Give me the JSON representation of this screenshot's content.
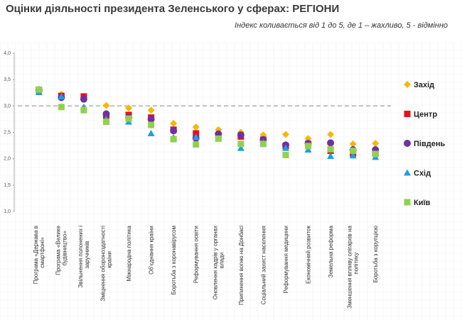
{
  "title": "Оцінки діяльності президента Зеленського у сферах: РЕГІОНИ",
  "subtitle": "Індекс коливається від 1 до 5, де 1 – жахливо, 5 - відмінно",
  "chart_data": {
    "type": "scatter",
    "title": "Оцінки діяльності президента Зеленського у сферах: РЕГІОНИ",
    "ylim": [
      1.0,
      4.0
    ],
    "yticks": [
      "1,0",
      "1,5",
      "2,0",
      "2,5",
      "3,0",
      "3,5",
      "4,0"
    ],
    "reference_line": 3.0,
    "grid": true,
    "legend": "right",
    "categories": [
      [
        "Програма «Держава в",
        "смартфоні»"
      ],
      [
        "Програма «Велике",
        "будівництво»"
      ],
      [
        "Звільнення полонених і",
        "заручників"
      ],
      [
        "Зміцнення обороноздатності",
        "країни"
      ],
      [
        "Міжнародна політика"
      ],
      [
        "Об'єднання країни"
      ],
      [
        "Боротьба з коронавірусом"
      ],
      [
        "Реформування освіти"
      ],
      [
        "Оновлення кадрів у органах",
        "влади"
      ],
      [
        "Припинення вогню на Донбасі"
      ],
      [
        "Соціальний захист населення"
      ],
      [
        "Реформування медицини"
      ],
      [
        "Економічний розвиток"
      ],
      [
        "Земельна реформа"
      ],
      [
        "Зменшення впливу олігархів на",
        "політику"
      ],
      [
        "Боротьба з корупцією"
      ]
    ],
    "series": [
      {
        "name": "Захід",
        "color": "#f5b800",
        "marker": "diamond",
        "values": [
          3.32,
          3.22,
          3.16,
          3.01,
          2.96,
          2.92,
          2.67,
          2.6,
          2.55,
          2.5,
          2.45,
          2.46,
          2.38,
          2.46,
          2.28,
          2.29
        ]
      },
      {
        "name": "Центр",
        "color": "#e8101a",
        "marker": "square",
        "values": [
          3.3,
          3.19,
          3.18,
          2.8,
          2.83,
          2.78,
          2.55,
          2.48,
          2.44,
          2.42,
          2.36,
          2.24,
          2.28,
          2.15,
          2.1,
          2.1
        ]
      },
      {
        "name": "Південь",
        "color": "#7030a0",
        "marker": "circle",
        "values": [
          3.3,
          3.16,
          3.13,
          2.85,
          2.78,
          2.75,
          2.53,
          2.39,
          2.47,
          2.45,
          2.36,
          2.26,
          2.29,
          2.3,
          2.17,
          2.17
        ]
      },
      {
        "name": "Схід",
        "color": "#1ba1e2",
        "marker": "triangle",
        "values": [
          3.26,
          3.18,
          2.98,
          2.75,
          2.7,
          2.48,
          2.4,
          2.41,
          2.38,
          2.2,
          2.3,
          2.2,
          2.17,
          2.05,
          2.06,
          2.03
        ]
      },
      {
        "name": "Київ",
        "color": "#92d050",
        "marker": "square",
        "values": [
          3.31,
          2.98,
          2.92,
          2.7,
          2.76,
          2.64,
          2.37,
          2.27,
          2.38,
          2.28,
          2.28,
          2.07,
          2.24,
          2.18,
          2.15,
          2.09
        ]
      }
    ]
  }
}
